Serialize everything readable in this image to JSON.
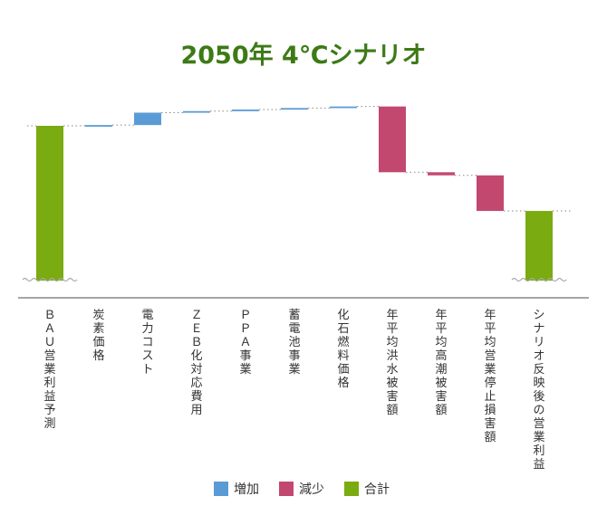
{
  "chart_data": {
    "type": "waterfall",
    "title": "2050年 4℃シナリオ",
    "categories": [
      "ＢＡＵ営業利益予測",
      "炭素価格",
      "電力コスト",
      "ＺＥＢ化対応費用",
      "ＰＰＡ事業",
      "蓄電池事業",
      "化石燃料価格",
      "年平均洪水被害額",
      "年平均高潮被害額",
      "年平均営業停止損害額",
      "シナリオ反映後の営業利益"
    ],
    "steps": [
      {
        "kind": "total",
        "start": 0,
        "end": 100
      },
      {
        "kind": "change",
        "start": 100,
        "end": 100.5
      },
      {
        "kind": "change",
        "start": 100.5,
        "end": 108.5
      },
      {
        "kind": "change",
        "start": 108.5,
        "end": 109.5
      },
      {
        "kind": "change",
        "start": 109.5,
        "end": 110.5
      },
      {
        "kind": "change",
        "start": 110.5,
        "end": 111.5
      },
      {
        "kind": "change",
        "start": 111.5,
        "end": 112.5
      },
      {
        "kind": "change",
        "start": 112.5,
        "end": 70
      },
      {
        "kind": "change",
        "start": 70,
        "end": 68
      },
      {
        "kind": "change",
        "start": 68,
        "end": 45
      },
      {
        "kind": "total",
        "start": 0,
        "end": 45
      }
    ],
    "legend": [
      {
        "name": "増加",
        "color": "#5b9bd5"
      },
      {
        "name": "減少",
        "color": "#c34870"
      },
      {
        "name": "合計",
        "color": "#7aab10"
      }
    ],
    "axis_break": true
  }
}
